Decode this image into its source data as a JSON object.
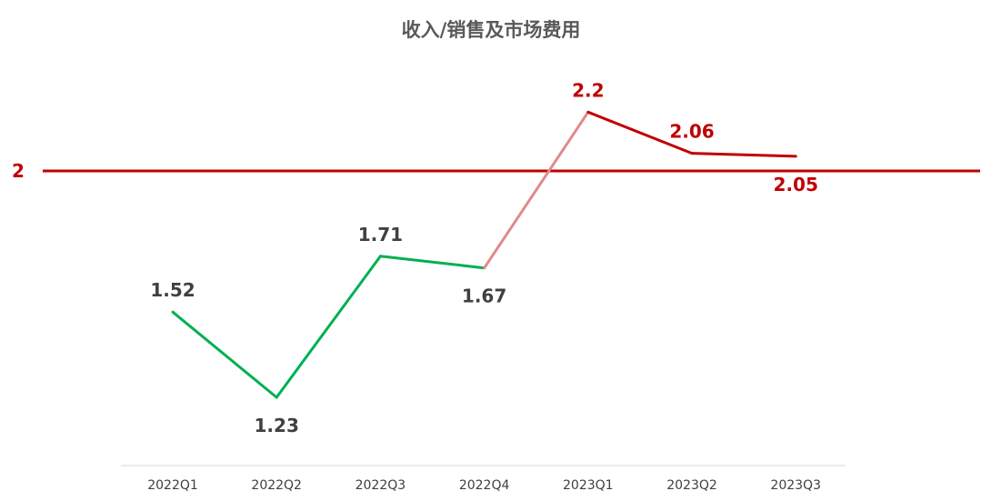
{
  "chart_data": {
    "type": "line",
    "title": "收入/销售及市场费用",
    "xlabel": "",
    "ylabel": "",
    "categories": [
      "2022Q1",
      "2022Q2",
      "2022Q3",
      "2022Q4",
      "2023Q1",
      "2023Q2",
      "2023Q3"
    ],
    "series": [
      {
        "values": [
          1.52,
          1.23,
          1.71,
          1.67,
          2.2,
          2.06,
          2.05
        ]
      }
    ],
    "data_labels": [
      "1.52",
      "1.23",
      "1.71",
      "1.67",
      "2.2",
      "2.06",
      "2.05"
    ],
    "reference_line": {
      "value": 2,
      "label": "2",
      "color": "#c00000"
    },
    "segment_colors": {
      "below_reference": "#00b050",
      "crossing": "#e08a8a",
      "above_reference": "#c00000"
    },
    "label_colors": {
      "below_reference": "#404040",
      "above_reference": "#c00000"
    },
    "grid": false,
    "legend": "none"
  }
}
